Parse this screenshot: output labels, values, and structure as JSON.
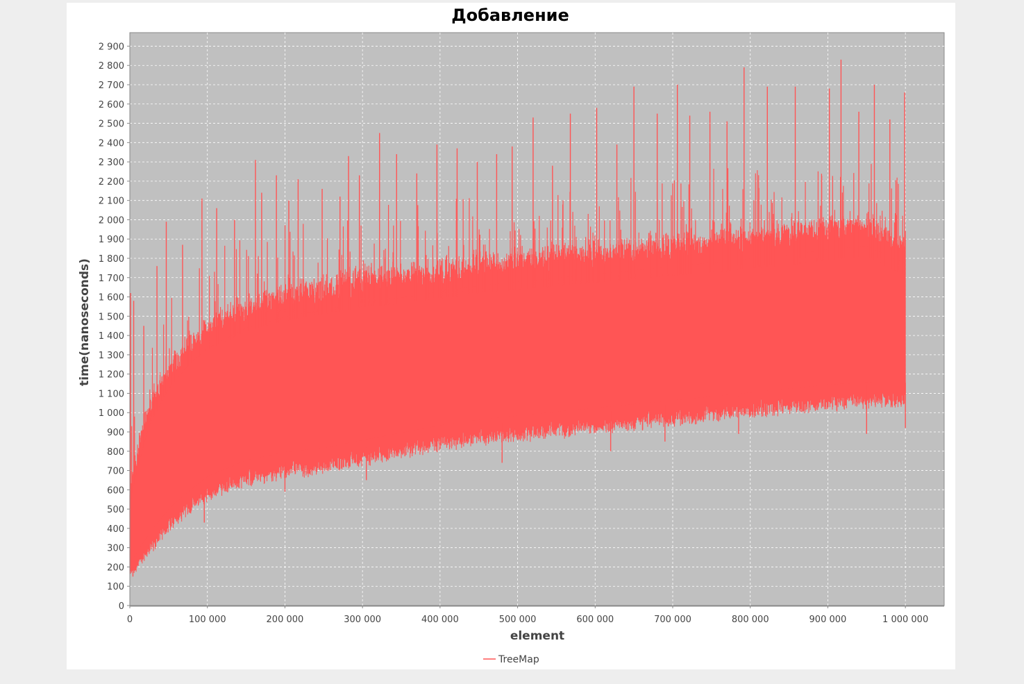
{
  "chart_data": {
    "type": "line",
    "title": "Добавление",
    "xlabel": "element",
    "ylabel": "time(nanoseconds)",
    "xlim": [
      0,
      1050000
    ],
    "ylim": [
      0,
      2970
    ],
    "x_ticks": [
      {
        "value": 0,
        "label": "0"
      },
      {
        "value": 100000,
        "label": "100 000"
      },
      {
        "value": 200000,
        "label": "200 000"
      },
      {
        "value": 300000,
        "label": "300 000"
      },
      {
        "value": 400000,
        "label": "400 000"
      },
      {
        "value": 500000,
        "label": "500 000"
      },
      {
        "value": 600000,
        "label": "600 000"
      },
      {
        "value": 700000,
        "label": "700 000"
      },
      {
        "value": 800000,
        "label": "800 000"
      },
      {
        "value": 900000,
        "label": "900 000"
      },
      {
        "value": 1000000,
        "label": "1 000 000"
      }
    ],
    "y_ticks": [
      {
        "value": 0,
        "label": "0"
      },
      {
        "value": 100,
        "label": "100"
      },
      {
        "value": 200,
        "label": "200"
      },
      {
        "value": 300,
        "label": "300"
      },
      {
        "value": 400,
        "label": "400"
      },
      {
        "value": 500,
        "label": "500"
      },
      {
        "value": 600,
        "label": "600"
      },
      {
        "value": 700,
        "label": "700"
      },
      {
        "value": 800,
        "label": "800"
      },
      {
        "value": 900,
        "label": "900"
      },
      {
        "value": 1000,
        "label": "1 000"
      },
      {
        "value": 1100,
        "label": "1 100"
      },
      {
        "value": 1200,
        "label": "1 200"
      },
      {
        "value": 1300,
        "label": "1 300"
      },
      {
        "value": 1400,
        "label": "1 400"
      },
      {
        "value": 1500,
        "label": "1 500"
      },
      {
        "value": 1600,
        "label": "1 600"
      },
      {
        "value": 1700,
        "label": "1 700"
      },
      {
        "value": 1800,
        "label": "1 800"
      },
      {
        "value": 1900,
        "label": "1 900"
      },
      {
        "value": 2000,
        "label": "2 000"
      },
      {
        "value": 2100,
        "label": "2 100"
      },
      {
        "value": 2200,
        "label": "2 200"
      },
      {
        "value": 2300,
        "label": "2 300"
      },
      {
        "value": 2400,
        "label": "2 400"
      },
      {
        "value": 2500,
        "label": "2 500"
      },
      {
        "value": 2600,
        "label": "2 600"
      },
      {
        "value": 2700,
        "label": "2 700"
      },
      {
        "value": 2800,
        "label": "2 800"
      },
      {
        "value": 2900,
        "label": "2 900"
      }
    ],
    "grid": true,
    "legend_position": "bottom-center",
    "colors": {
      "series": "#ff5555",
      "plot_background": "#c0c0c0",
      "gridline": "#ffffff",
      "page_background": "#eeeeee",
      "panel_background": "#ffffff"
    },
    "series": [
      {
        "name": "TreeMap",
        "band": {
          "x": [
            0,
            10000,
            25000,
            50000,
            75000,
            100000,
            150000,
            200000,
            250000,
            300000,
            350000,
            400000,
            450000,
            500000,
            550000,
            600000,
            650000,
            700000,
            750000,
            800000,
            850000,
            900000,
            950000,
            1000000
          ],
          "lower": [
            160,
            210,
            280,
            400,
            480,
            560,
            640,
            680,
            700,
            740,
            780,
            820,
            850,
            870,
            890,
            910,
            930,
            950,
            970,
            990,
            1010,
            1030,
            1040,
            1050
          ],
          "upper": [
            600,
            800,
            1050,
            1250,
            1380,
            1470,
            1580,
            1640,
            1680,
            1720,
            1740,
            1770,
            1800,
            1820,
            1840,
            1860,
            1880,
            1900,
            1920,
            1940,
            1960,
            1990,
            2010,
            1900
          ]
        },
        "spikes": [
          {
            "x": 1000,
            "y": 1620
          },
          {
            "x": 5000,
            "y": 1580
          },
          {
            "x": 18000,
            "y": 1450
          },
          {
            "x": 35000,
            "y": 1760
          },
          {
            "x": 47000,
            "y": 1990
          },
          {
            "x": 68000,
            "y": 1870
          },
          {
            "x": 93000,
            "y": 2110
          },
          {
            "x": 112000,
            "y": 2060
          },
          {
            "x": 135000,
            "y": 2000
          },
          {
            "x": 162000,
            "y": 2310
          },
          {
            "x": 170000,
            "y": 2140
          },
          {
            "x": 189000,
            "y": 2230
          },
          {
            "x": 205000,
            "y": 2100
          },
          {
            "x": 217000,
            "y": 2210
          },
          {
            "x": 248000,
            "y": 2160
          },
          {
            "x": 271000,
            "y": 2120
          },
          {
            "x": 282000,
            "y": 2330
          },
          {
            "x": 296000,
            "y": 2230
          },
          {
            "x": 322000,
            "y": 2450
          },
          {
            "x": 344000,
            "y": 2340
          },
          {
            "x": 370000,
            "y": 2240
          },
          {
            "x": 396000,
            "y": 2390
          },
          {
            "x": 422000,
            "y": 2370
          },
          {
            "x": 448000,
            "y": 2300
          },
          {
            "x": 473000,
            "y": 2340
          },
          {
            "x": 493000,
            "y": 2380
          },
          {
            "x": 520000,
            "y": 2530
          },
          {
            "x": 545000,
            "y": 2280
          },
          {
            "x": 568000,
            "y": 2550
          },
          {
            "x": 602000,
            "y": 2580
          },
          {
            "x": 628000,
            "y": 2390
          },
          {
            "x": 650000,
            "y": 2690
          },
          {
            "x": 680000,
            "y": 2550
          },
          {
            "x": 706000,
            "y": 2700
          },
          {
            "x": 722000,
            "y": 2540
          },
          {
            "x": 748000,
            "y": 2560
          },
          {
            "x": 770000,
            "y": 2510
          },
          {
            "x": 792000,
            "y": 2790
          },
          {
            "x": 822000,
            "y": 2690
          },
          {
            "x": 858000,
            "y": 2690
          },
          {
            "x": 902000,
            "y": 2680
          },
          {
            "x": 917000,
            "y": 2830
          },
          {
            "x": 940000,
            "y": 2560
          },
          {
            "x": 960000,
            "y": 2700
          },
          {
            "x": 980000,
            "y": 2520
          },
          {
            "x": 999000,
            "y": 2660
          }
        ],
        "dips": [
          {
            "x": 4000,
            "y": 150
          },
          {
            "x": 96000,
            "y": 430
          },
          {
            "x": 200000,
            "y": 590
          },
          {
            "x": 305000,
            "y": 650
          },
          {
            "x": 480000,
            "y": 740
          },
          {
            "x": 620000,
            "y": 800
          },
          {
            "x": 690000,
            "y": 850
          },
          {
            "x": 785000,
            "y": 890
          },
          {
            "x": 950000,
            "y": 890
          },
          {
            "x": 1000000,
            "y": 920
          }
        ]
      }
    ]
  }
}
